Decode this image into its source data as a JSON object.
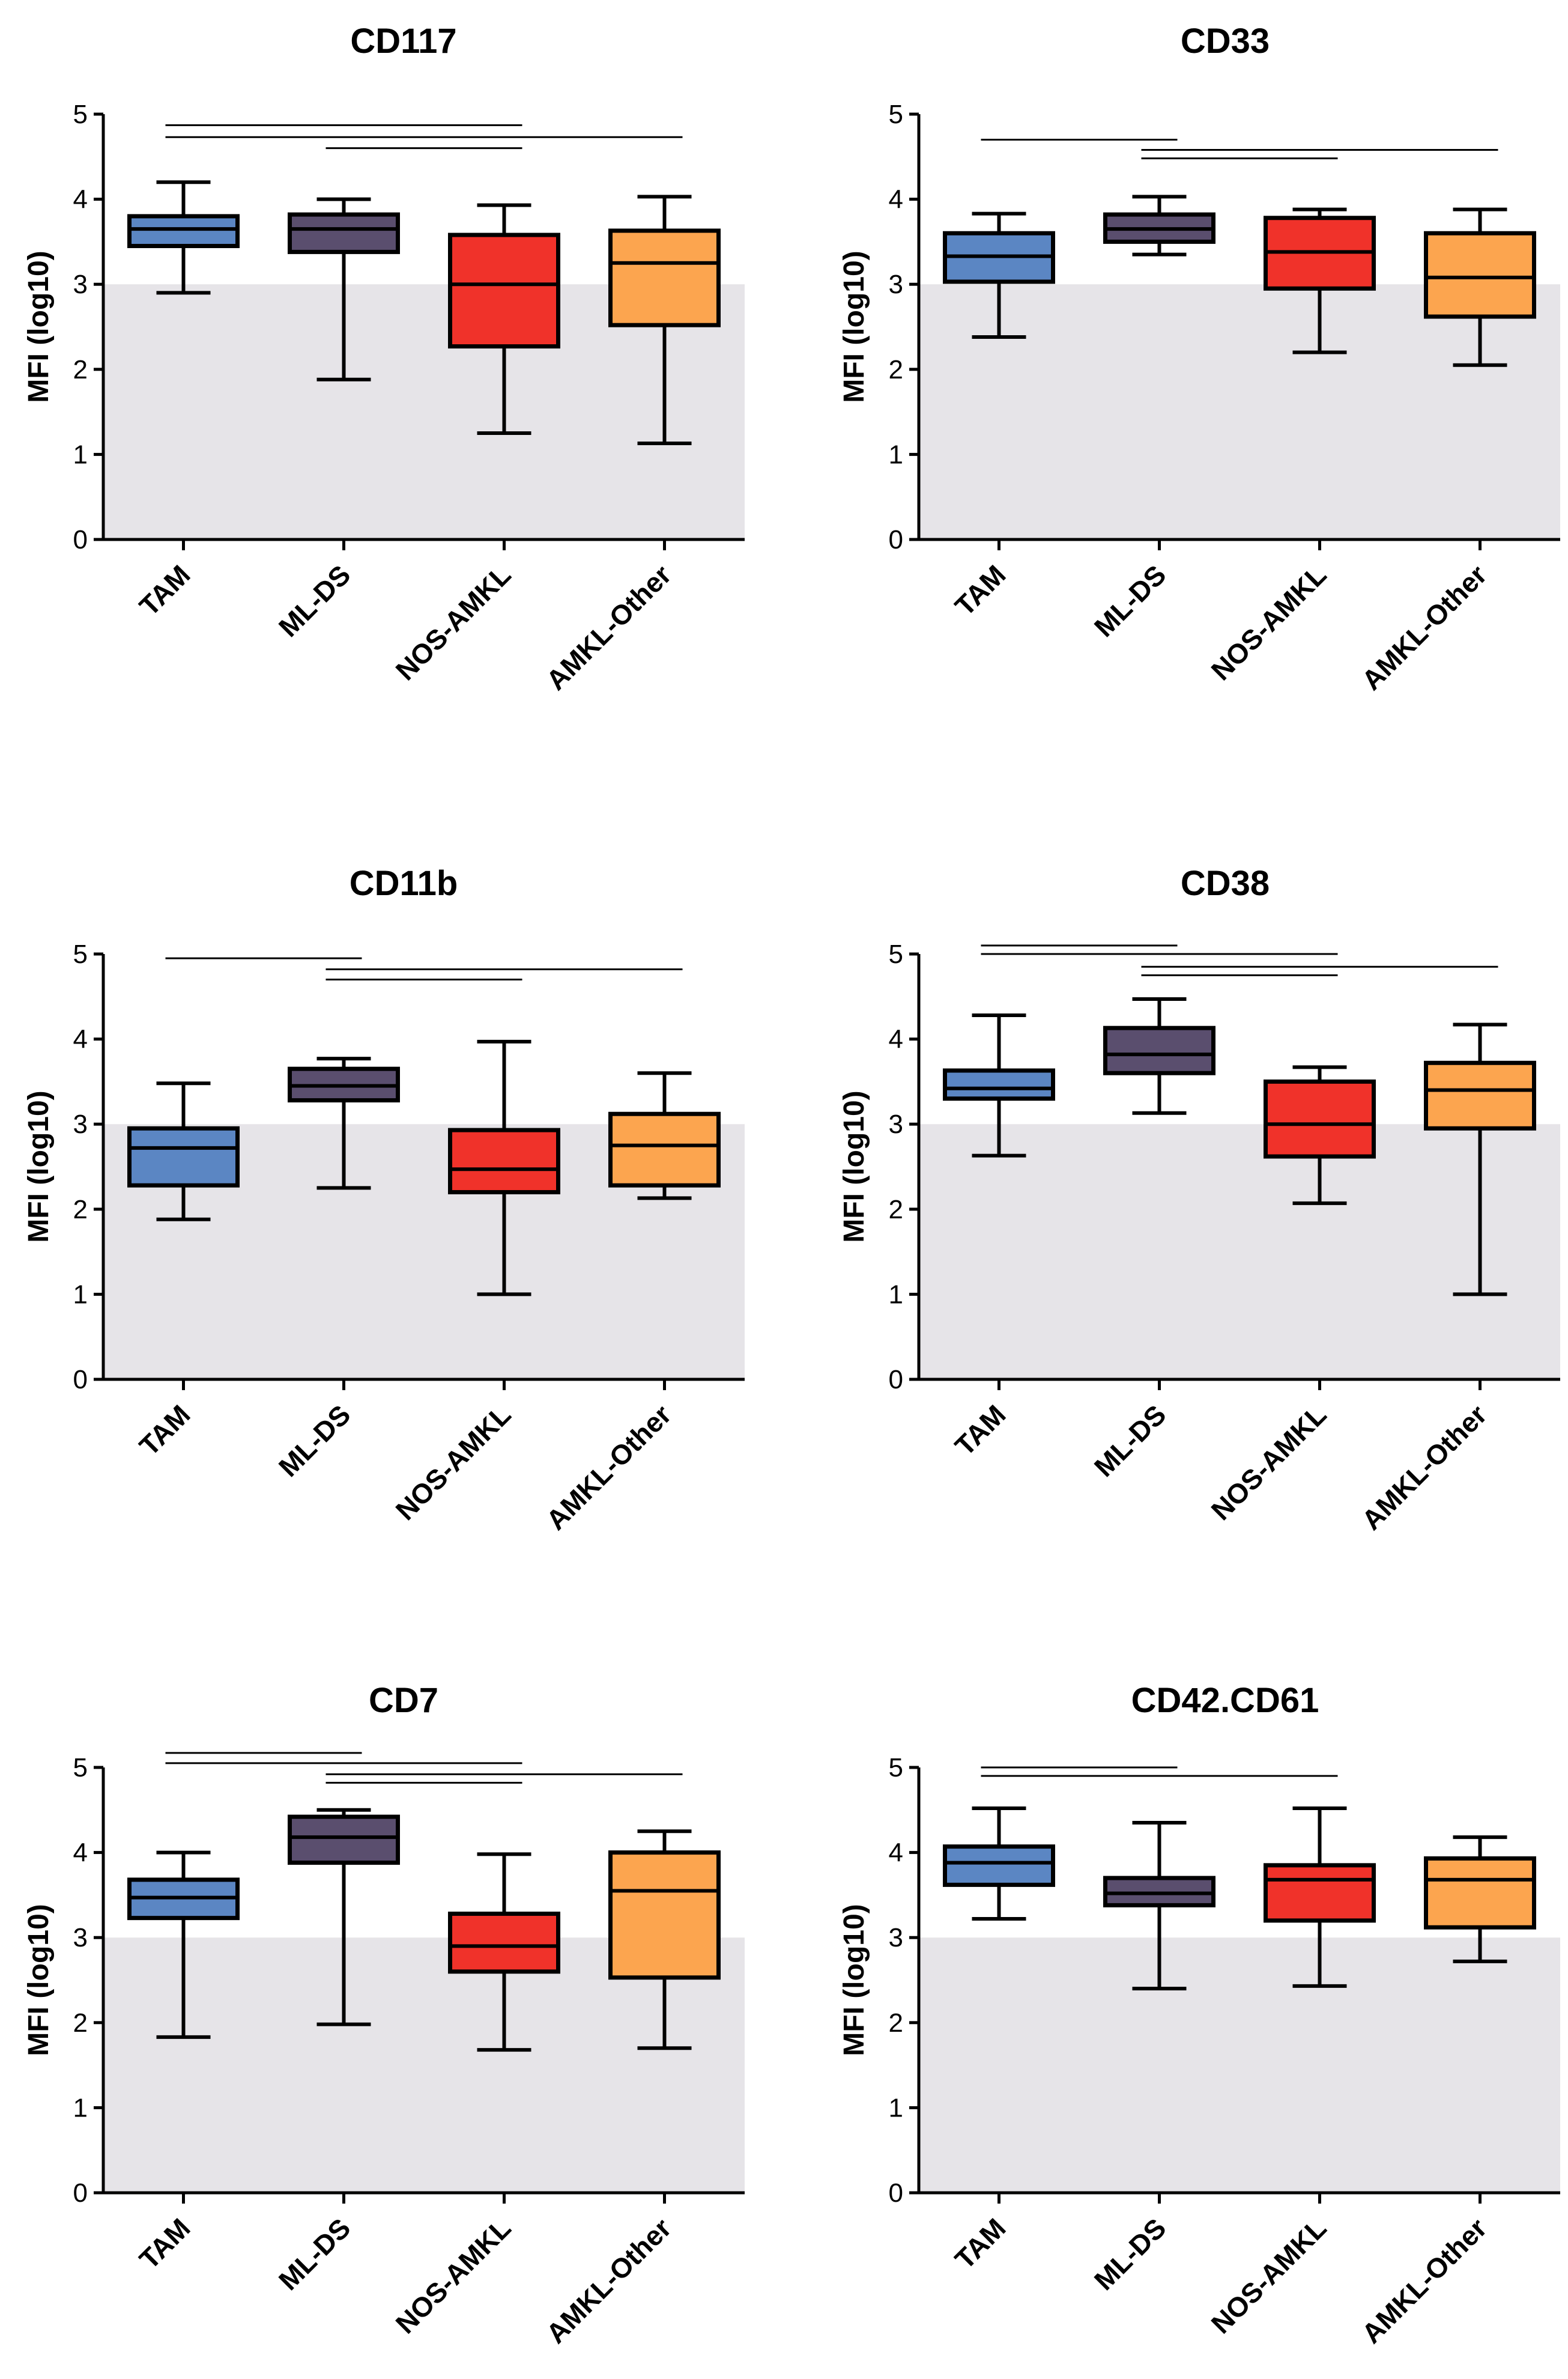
{
  "figure": {
    "colors": {
      "TAM": "#5b86c3",
      "ML-DS": "#5a4e6e",
      "NOS-AMKL": "#f0322a",
      "AMKL-Other": "#fca54f",
      "shade": "#e6e4e8"
    }
  },
  "chart_data": [
    {
      "type": "box",
      "title": "CD117",
      "ylabel": "MFI (log10)",
      "categories": [
        "TAM",
        "ML-DS",
        "NOS-AMKL",
        "AMKL-Other"
      ],
      "yticks": [
        "0",
        "1",
        "2",
        "3",
        "4",
        "5"
      ],
      "ylim": [
        0,
        5
      ],
      "shade_below": 3,
      "boxes": [
        {
          "min": 2.9,
          "q1": 3.45,
          "median": 3.65,
          "q3": 3.8,
          "max": 4.2
        },
        {
          "min": 1.88,
          "q1": 3.38,
          "median": 3.65,
          "q3": 3.82,
          "max": 4.0
        },
        {
          "min": 1.25,
          "q1": 2.27,
          "median": 3.0,
          "q3": 3.58,
          "max": 3.93
        },
        {
          "min": 1.13,
          "q1": 2.52,
          "median": 3.25,
          "q3": 3.63,
          "max": 4.03
        }
      ],
      "significance_bars": [
        {
          "from": 0,
          "to": 2,
          "level": 4.87
        },
        {
          "from": 0,
          "to": 3,
          "level": 4.73
        },
        {
          "from": 1,
          "to": 2,
          "level": 4.6
        }
      ]
    },
    {
      "type": "box",
      "title": "CD33",
      "ylabel": "MFI (log10)",
      "categories": [
        "TAM",
        "ML-DS",
        "NOS-AMKL",
        "AMKL-Other"
      ],
      "yticks": [
        "0",
        "1",
        "2",
        "3",
        "4",
        "5"
      ],
      "ylim": [
        0,
        5
      ],
      "shade_below": 3,
      "boxes": [
        {
          "min": 2.38,
          "q1": 3.03,
          "median": 3.33,
          "q3": 3.6,
          "max": 3.83
        },
        {
          "min": 3.35,
          "q1": 3.5,
          "median": 3.65,
          "q3": 3.82,
          "max": 4.03
        },
        {
          "min": 2.2,
          "q1": 2.95,
          "median": 3.38,
          "q3": 3.78,
          "max": 3.88
        },
        {
          "min": 2.05,
          "q1": 2.62,
          "median": 3.08,
          "q3": 3.6,
          "max": 3.88
        }
      ],
      "significance_bars": [
        {
          "from": 0,
          "to": 1,
          "level": 4.7
        },
        {
          "from": 1,
          "to": 3,
          "level": 4.58
        },
        {
          "from": 1,
          "to": 2,
          "level": 4.48
        }
      ]
    },
    {
      "type": "box",
      "title": "CD11b",
      "ylabel": "MFI (log10)",
      "categories": [
        "TAM",
        "ML-DS",
        "NOS-AMKL",
        "AMKL-Other"
      ],
      "yticks": [
        "0",
        "1",
        "2",
        "3",
        "4",
        "5"
      ],
      "ylim": [
        0,
        5
      ],
      "shade_below": 3,
      "boxes": [
        {
          "min": 1.88,
          "q1": 2.28,
          "median": 2.72,
          "q3": 2.95,
          "max": 3.48
        },
        {
          "min": 2.25,
          "q1": 3.28,
          "median": 3.45,
          "q3": 3.65,
          "max": 3.77
        },
        {
          "min": 1.0,
          "q1": 2.2,
          "median": 2.47,
          "q3": 2.93,
          "max": 3.97
        },
        {
          "min": 2.13,
          "q1": 2.28,
          "median": 2.75,
          "q3": 3.12,
          "max": 3.6
        }
      ],
      "significance_bars": [
        {
          "from": 0,
          "to": 1,
          "level": 4.95
        },
        {
          "from": 1,
          "to": 3,
          "level": 4.82
        },
        {
          "from": 1,
          "to": 2,
          "level": 4.7
        }
      ]
    },
    {
      "type": "box",
      "title": "CD38",
      "ylabel": "MFI (log10)",
      "categories": [
        "TAM",
        "ML-DS",
        "NOS-AMKL",
        "AMKL-Other"
      ],
      "yticks": [
        "0",
        "1",
        "2",
        "3",
        "4",
        "5"
      ],
      "ylim": [
        0,
        5
      ],
      "shade_below": 3,
      "boxes": [
        {
          "min": 2.63,
          "q1": 3.3,
          "median": 3.42,
          "q3": 3.63,
          "max": 4.28
        },
        {
          "min": 3.13,
          "q1": 3.6,
          "median": 3.82,
          "q3": 4.13,
          "max": 4.47
        },
        {
          "min": 2.07,
          "q1": 2.62,
          "median": 3.0,
          "q3": 3.5,
          "max": 3.67
        },
        {
          "min": 1.0,
          "q1": 2.95,
          "median": 3.4,
          "q3": 3.72,
          "max": 4.17
        }
      ],
      "significance_bars": [
        {
          "from": 0,
          "to": 1,
          "level": 5.1
        },
        {
          "from": 0,
          "to": 2,
          "level": 5.0
        },
        {
          "from": 1,
          "to": 3,
          "level": 4.85
        },
        {
          "from": 1,
          "to": 2,
          "level": 4.75
        }
      ]
    },
    {
      "type": "box",
      "title": "CD7",
      "ylabel": "MFI (log10)",
      "categories": [
        "TAM",
        "ML-DS",
        "NOS-AMKL",
        "AMKL-Other"
      ],
      "yticks": [
        "0",
        "1",
        "2",
        "3",
        "4",
        "5"
      ],
      "ylim": [
        0,
        5
      ],
      "shade_below": 3,
      "boxes": [
        {
          "min": 1.83,
          "q1": 3.23,
          "median": 3.47,
          "q3": 3.68,
          "max": 4.0
        },
        {
          "min": 1.98,
          "q1": 3.88,
          "median": 4.18,
          "q3": 4.42,
          "max": 4.5
        },
        {
          "min": 1.68,
          "q1": 2.6,
          "median": 2.9,
          "q3": 3.28,
          "max": 3.98
        },
        {
          "min": 1.7,
          "q1": 2.53,
          "median": 3.55,
          "q3": 4.0,
          "max": 4.25
        }
      ],
      "significance_bars": [
        {
          "from": 0,
          "to": 1,
          "level": 5.17
        },
        {
          "from": 0,
          "to": 2,
          "level": 5.05
        },
        {
          "from": 1,
          "to": 3,
          "level": 4.92
        },
        {
          "from": 1,
          "to": 2,
          "level": 4.82
        }
      ]
    },
    {
      "type": "box",
      "title": "CD42.CD61",
      "ylabel": "MFI (log10)",
      "categories": [
        "TAM",
        "ML-DS",
        "NOS-AMKL",
        "AMKL-Other"
      ],
      "yticks": [
        "0",
        "1",
        "2",
        "3",
        "4",
        "5"
      ],
      "ylim": [
        0,
        5
      ],
      "shade_below": 3,
      "boxes": [
        {
          "min": 3.22,
          "q1": 3.62,
          "median": 3.88,
          "q3": 4.07,
          "max": 4.52
        },
        {
          "min": 2.4,
          "q1": 3.38,
          "median": 3.52,
          "q3": 3.7,
          "max": 4.35
        },
        {
          "min": 2.43,
          "q1": 3.2,
          "median": 3.68,
          "q3": 3.85,
          "max": 4.52
        },
        {
          "min": 2.72,
          "q1": 3.12,
          "median": 3.68,
          "q3": 3.93,
          "max": 4.18
        }
      ],
      "significance_bars": [
        {
          "from": 0,
          "to": 1,
          "level": 5.0
        },
        {
          "from": 0,
          "to": 2,
          "level": 4.9
        }
      ]
    }
  ]
}
